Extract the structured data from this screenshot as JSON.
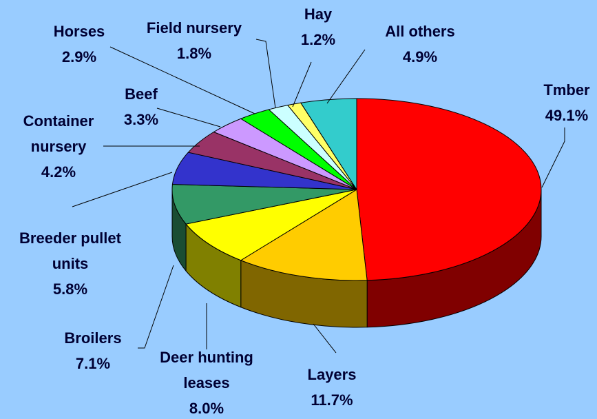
{
  "chart_data": {
    "type": "pie3d",
    "categories": [
      "Tmber",
      "Layers",
      "Deer hunting leases",
      "Broilers",
      "Breeder pullet units",
      "Container nursery",
      "Beef",
      "Horses",
      "Field nursery",
      "Hay",
      "All others"
    ],
    "values": [
      49.1,
      11.7,
      8.0,
      7.1,
      5.8,
      4.2,
      3.3,
      2.9,
      1.8,
      1.2,
      4.9
    ],
    "value_labels": [
      "49.1%",
      "11.7%",
      "8.0%",
      "7.1%",
      "5.8%",
      "4.2%",
      "3.3%",
      "2.9%",
      "1.8%",
      "1.2%",
      "4.9%"
    ],
    "colors": [
      "#ff0000",
      "#ffcc00",
      "#ffff00",
      "#339966",
      "#3333cc",
      "#993366",
      "#cc99ff",
      "#00ff00",
      "#ccffff",
      "#ffff66",
      "#33cccc"
    ]
  }
}
